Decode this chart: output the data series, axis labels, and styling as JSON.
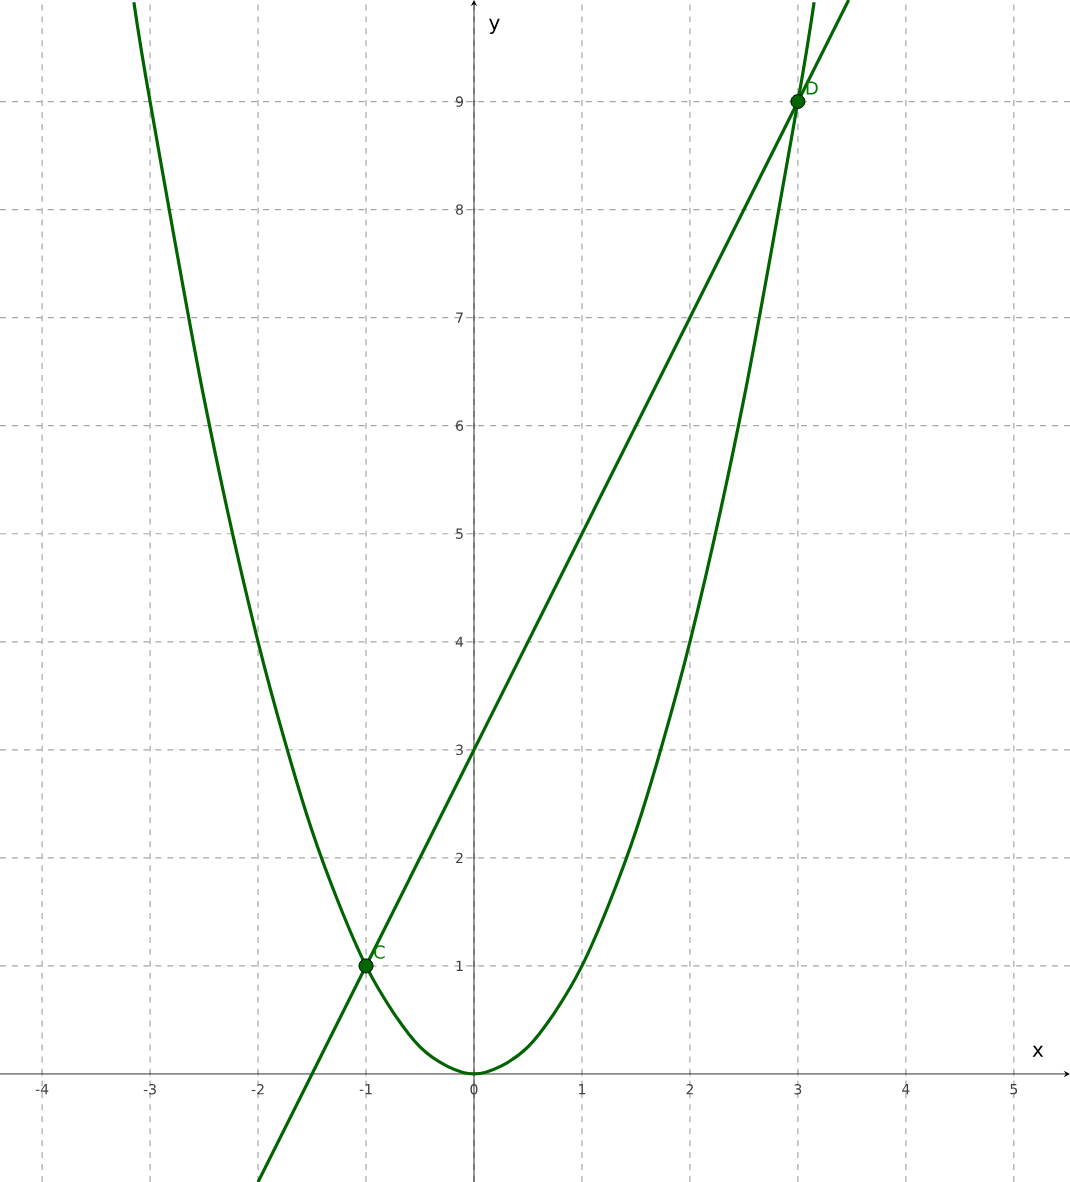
{
  "chart_data": {
    "type": "line",
    "xlabel": "x",
    "ylabel": "y",
    "xlim": [
      -4.39,
      5.52
    ],
    "ylim": [
      -1,
      9.94
    ],
    "xticks": [
      -4,
      -3,
      -2,
      -1,
      0,
      1,
      2,
      3,
      4,
      5
    ],
    "yticks": [
      1,
      2,
      3,
      4,
      5,
      6,
      7,
      8,
      9
    ],
    "grid": true,
    "marker": "none",
    "series": [
      {
        "color": "#006400",
        "x": [
          -3.15,
          -3,
          -2.5,
          -2,
          -1.5,
          -1,
          -0.5,
          0,
          0.5,
          1,
          1.5,
          2,
          2.5,
          3,
          3.15
        ],
        "values": [
          9.92,
          9,
          6.25,
          4,
          2.25,
          1,
          0.25,
          0,
          0.25,
          1,
          2.25,
          4,
          6.25,
          9,
          9.92
        ]
      },
      {
        "color": "#006400",
        "x": [
          -2,
          3.47
        ],
        "values": [
          -1,
          9.94
        ]
      },
      {
        "type": "scatter",
        "marker": "circle",
        "color": "#006400",
        "x": [
          -1,
          3
        ],
        "values": [
          1,
          9
        ]
      }
    ],
    "annotations": [
      {
        "text": "C",
        "x": -1,
        "y": 1
      },
      {
        "text": "D",
        "x": 3,
        "y": 9
      }
    ]
  }
}
